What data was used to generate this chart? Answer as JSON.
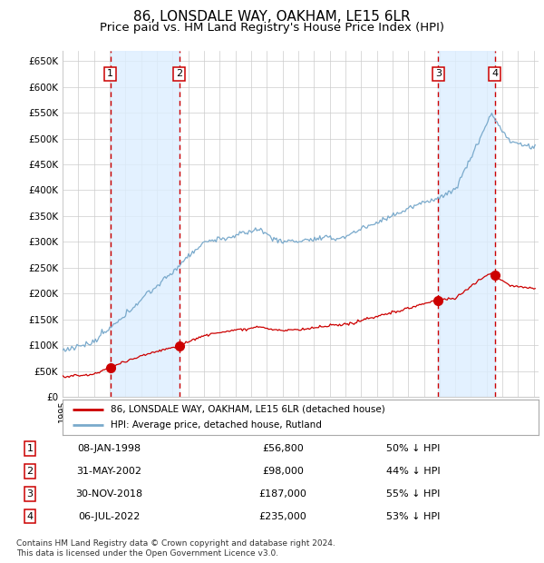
{
  "title": "86, LONSDALE WAY, OAKHAM, LE15 6LR",
  "subtitle": "Price paid vs. HM Land Registry's House Price Index (HPI)",
  "xlim": [
    1995.0,
    2025.3
  ],
  "ylim": [
    0,
    670000
  ],
  "yticks": [
    0,
    50000,
    100000,
    150000,
    200000,
    250000,
    300000,
    350000,
    400000,
    450000,
    500000,
    550000,
    600000,
    650000
  ],
  "ytick_labels": [
    "£0",
    "£50K",
    "£100K",
    "£150K",
    "£200K",
    "£250K",
    "£300K",
    "£350K",
    "£400K",
    "£450K",
    "£500K",
    "£550K",
    "£600K",
    "£650K"
  ],
  "sale_dates": [
    1998.03,
    2002.42,
    2018.92,
    2022.51
  ],
  "sale_prices": [
    56800,
    98000,
    187000,
    235000
  ],
  "sale_labels": [
    "1",
    "2",
    "3",
    "4"
  ],
  "sale_label_info": [
    {
      "label": "1",
      "date": "08-JAN-1998",
      "price": "£56,800",
      "pct": "50% ↓ HPI"
    },
    {
      "label": "2",
      "date": "31-MAY-2002",
      "price": "£98,000",
      "pct": "44% ↓ HPI"
    },
    {
      "label": "3",
      "date": "30-NOV-2018",
      "price": "£187,000",
      "pct": "55% ↓ HPI"
    },
    {
      "label": "4",
      "date": "06-JUL-2022",
      "price": "£235,000",
      "pct": "53% ↓ HPI"
    }
  ],
  "legend_property_label": "86, LONSDALE WAY, OAKHAM, LE15 6LR (detached house)",
  "legend_hpi_label": "HPI: Average price, detached house, Rutland",
  "property_line_color": "#cc0000",
  "hpi_line_color": "#7aaacc",
  "vline_color": "#cc0000",
  "shade_color": "#ddeeff",
  "grid_color": "#cccccc",
  "background_color": "#ffffff",
  "footer_text": "Contains HM Land Registry data © Crown copyright and database right 2024.\nThis data is licensed under the Open Government Licence v3.0.",
  "title_fontsize": 11,
  "subtitle_fontsize": 9.5
}
